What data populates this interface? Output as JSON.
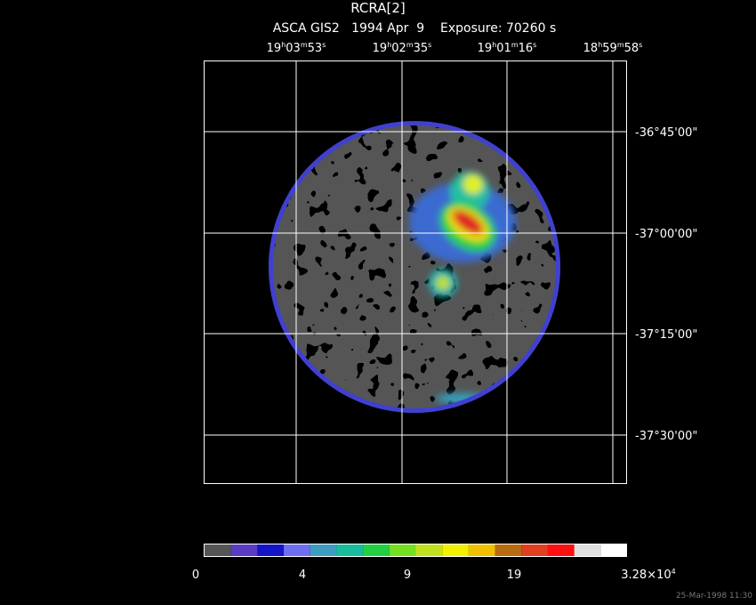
{
  "header": {
    "title": "RCRA[2]",
    "subtitle": "ASCA GIS2   1994 Apr  9    Exposure: 70260 s"
  },
  "ra_labels": [
    [
      "19",
      "h",
      "03",
      "m",
      "53",
      "s"
    ],
    [
      "19",
      "h",
      "02",
      "m",
      "35",
      "s"
    ],
    [
      "19",
      "h",
      "01",
      "m",
      "16",
      "s"
    ],
    [
      "18",
      "h",
      "59",
      "m",
      "58",
      "s"
    ]
  ],
  "dec_labels": [
    "-36°45'00\"",
    "-37°00'00\"",
    "-37°15'00\"",
    "-37°30'00\""
  ],
  "colorbar": {
    "colors": [
      "#555555",
      "#5a3cc4",
      "#1414c8",
      "#6e6ef0",
      "#3c9cc0",
      "#18bc9c",
      "#22d044",
      "#74e020",
      "#c0e020",
      "#f0f000",
      "#f0c000",
      "#b86c10",
      "#e04020",
      "#ff1010",
      "#e0e0e0",
      "#ffffff"
    ],
    "labels": [
      [
        "0"
      ],
      [
        "4"
      ],
      [
        "9"
      ],
      [
        "19"
      ],
      [
        "3.28×10",
        "4"
      ]
    ]
  },
  "footer": "25-Mar-1998 11:30"
}
